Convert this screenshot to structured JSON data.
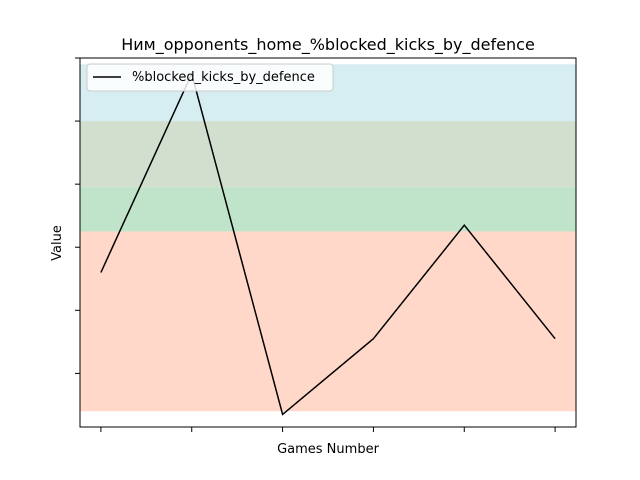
{
  "chart_data": {
    "type": "line",
    "title": "Ним_opponents_home_%blocked_kicks_by_defence",
    "xlabel": "Games Number",
    "ylabel": "Value",
    "x": [
      1,
      2,
      3,
      4,
      5,
      6
    ],
    "series": [
      {
        "name": "%blocked_kicks_by_defence",
        "values": [
          0.32,
          0.95,
          -0.13,
          0.11,
          0.47,
          0.11
        ],
        "color": "#000000"
      }
    ],
    "xlim": [
      0.77,
      6.23
    ],
    "ylim": [
      -0.17,
      1.0
    ],
    "bands": [
      {
        "from": -0.12,
        "to": 0.45,
        "color": "#ffd8c9"
      },
      {
        "from": 0.45,
        "to": 0.59,
        "color": "#c0e4c9"
      },
      {
        "from": 0.59,
        "to": 0.8,
        "color": "#d2dfcf"
      },
      {
        "from": 0.8,
        "to": 0.98,
        "color": "#d6edf2"
      }
    ],
    "yticks": [
      0.0,
      0.2,
      0.4,
      0.6,
      0.8,
      1.0
    ],
    "ticklabels_visible": false,
    "legend": "upper-left",
    "grid": false
  }
}
